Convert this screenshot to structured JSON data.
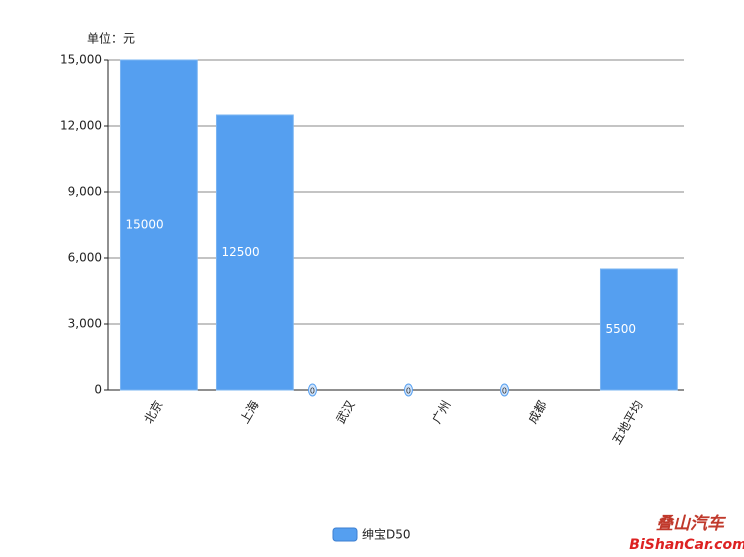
{
  "chart_data": {
    "type": "bar",
    "unit_label": "单位：元",
    "categories": [
      "北京",
      "上海",
      "武汉",
      "广州",
      "成都",
      "五地平均"
    ],
    "series": [
      {
        "name": "绅宝D50",
        "color": "#559ff0",
        "values": [
          15000,
          12500,
          0,
          0,
          0,
          5500
        ]
      }
    ],
    "ylim": [
      0,
      15000
    ],
    "yticks": [
      0,
      {
        "value": 3000,
        "label": "3,000"
      },
      {
        "value": 6000,
        "label": "6,000"
      },
      {
        "value": 9000,
        "label": "9,000"
      },
      {
        "value": 12000,
        "label": "12,000"
      },
      {
        "value": 15000,
        "label": "15,000"
      }
    ],
    "grid": true
  },
  "watermark": {
    "cn": "叠山汽车",
    "en": "BiShanCar.com"
  }
}
